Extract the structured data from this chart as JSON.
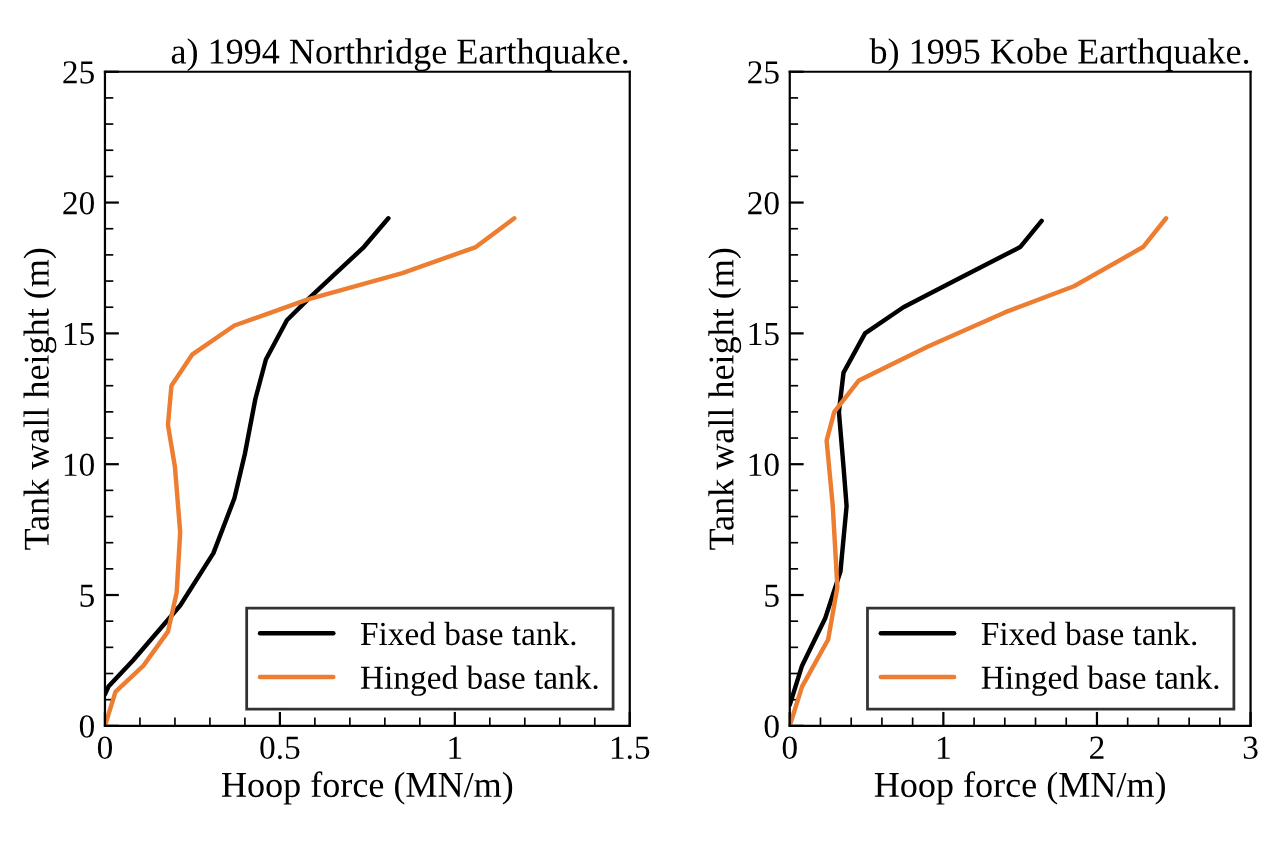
{
  "chart_data": [
    {
      "type": "line",
      "title": "a) 1994 Northridge Earthquake.",
      "xlabel": "Hoop force (MN/m)",
      "ylabel": "Tank wall height (m)",
      "xlim": [
        0,
        1.5
      ],
      "ylim": [
        0,
        25
      ],
      "xticks": [
        0,
        {
          "value": 0.1,
          "label": null
        },
        {
          "value": 0.2,
          "label": null
        },
        {
          "value": 0.3,
          "label": null
        },
        {
          "value": 0.4,
          "label": null
        },
        0.5,
        {
          "value": 0.6,
          "label": null
        },
        {
          "value": 0.7,
          "label": null
        },
        {
          "value": 0.8,
          "label": null
        },
        {
          "value": 0.9,
          "label": null
        },
        1,
        {
          "value": 1.1,
          "label": null
        },
        {
          "value": 1.2,
          "label": null
        },
        {
          "value": 1.3,
          "label": null
        },
        {
          "value": 1.4,
          "label": null
        },
        1.5
      ],
      "yticks": [
        0,
        {
          "value": 1,
          "label": null
        },
        {
          "value": 2,
          "label": null
        },
        {
          "value": 3,
          "label": null
        },
        {
          "value": 4,
          "label": null
        },
        5,
        {
          "value": 6,
          "label": null
        },
        {
          "value": 7,
          "label": null
        },
        {
          "value": 8,
          "label": null
        },
        {
          "value": 9,
          "label": null
        },
        10,
        {
          "value": 11,
          "label": null
        },
        {
          "value": 12,
          "label": null
        },
        {
          "value": 13,
          "label": null
        },
        {
          "value": 14,
          "label": null
        },
        15,
        {
          "value": 16,
          "label": null
        },
        {
          "value": 17,
          "label": null
        },
        {
          "value": 18,
          "label": null
        },
        {
          "value": 19,
          "label": null
        },
        20,
        {
          "value": 21,
          "label": null
        },
        {
          "value": 22,
          "label": null
        },
        {
          "value": 23,
          "label": null
        },
        {
          "value": 24,
          "label": null
        },
        25
      ],
      "grid": false,
      "legend": "bottom right",
      "marker": "none",
      "line_style": "solid",
      "series": [
        {
          "name": "Fixed base tank.",
          "color": "#000000",
          "x": [
            0,
            0.01,
            0.08,
            0.215,
            0.31,
            0.37,
            0.4,
            0.43,
            0.46,
            0.52,
            0.58,
            0.66,
            0.74,
            0.81
          ],
          "values": [
            1.2,
            1.5,
            2.5,
            4.6,
            6.6,
            8.7,
            10.4,
            12.5,
            14,
            15.5,
            16.3,
            17.3,
            18.3,
            19.4
          ]
        },
        {
          "name": "Hinged base tank.",
          "color": "#ed7d31",
          "x": [
            0,
            0.03,
            0.11,
            0.18,
            0.205,
            0.215,
            0.2,
            0.18,
            0.19,
            0.25,
            0.37,
            0.58,
            0.85,
            1.06,
            1.17
          ],
          "values": [
            0,
            1.3,
            2.3,
            3.6,
            5.1,
            7.4,
            9.9,
            11.5,
            13,
            14.2,
            15.3,
            16.3,
            17.3,
            18.3,
            19.4
          ]
        }
      ]
    },
    {
      "type": "line",
      "title": "b) 1995 Kobe Earthquake.",
      "xlabel": "Hoop force (MN/m)",
      "ylabel": "Tank wall height (m)",
      "xlim": [
        0,
        3
      ],
      "ylim": [
        0,
        25
      ],
      "xticks": [
        0,
        {
          "value": 0.2,
          "label": null
        },
        {
          "value": 0.4,
          "label": null
        },
        {
          "value": 0.6,
          "label": null
        },
        {
          "value": 0.8,
          "label": null
        },
        1,
        {
          "value": 1.2,
          "label": null
        },
        {
          "value": 1.4,
          "label": null
        },
        {
          "value": 1.6,
          "label": null
        },
        {
          "value": 1.8,
          "label": null
        },
        2,
        {
          "value": 2.2,
          "label": null
        },
        {
          "value": 2.4,
          "label": null
        },
        {
          "value": 2.6,
          "label": null
        },
        {
          "value": 2.8,
          "label": null
        },
        3
      ],
      "yticks": [
        0,
        {
          "value": 1,
          "label": null
        },
        {
          "value": 2,
          "label": null
        },
        {
          "value": 3,
          "label": null
        },
        {
          "value": 4,
          "label": null
        },
        5,
        {
          "value": 6,
          "label": null
        },
        {
          "value": 7,
          "label": null
        },
        {
          "value": 8,
          "label": null
        },
        {
          "value": 9,
          "label": null
        },
        10,
        {
          "value": 11,
          "label": null
        },
        {
          "value": 12,
          "label": null
        },
        {
          "value": 13,
          "label": null
        },
        {
          "value": 14,
          "label": null
        },
        15,
        {
          "value": 16,
          "label": null
        },
        {
          "value": 17,
          "label": null
        },
        {
          "value": 18,
          "label": null
        },
        {
          "value": 19,
          "label": null
        },
        20,
        {
          "value": 21,
          "label": null
        },
        {
          "value": 22,
          "label": null
        },
        {
          "value": 23,
          "label": null
        },
        {
          "value": 24,
          "label": null
        },
        25
      ],
      "grid": false,
      "legend": "bottom right",
      "marker": "none",
      "line_style": "solid",
      "series": [
        {
          "name": "Fixed base tank.",
          "color": "#000000",
          "x": [
            0,
            0.08,
            0.23,
            0.33,
            0.37,
            0.35,
            0.32,
            0.35,
            0.49,
            0.74,
            1.07,
            1.5,
            1.64
          ],
          "values": [
            0.8,
            2.3,
            4.1,
            5.9,
            8.4,
            9.9,
            12,
            13.5,
            15,
            16,
            17,
            18.3,
            19.3
          ]
        },
        {
          "name": "Hinged base tank.",
          "color": "#ed7d31",
          "x": [
            0,
            0.08,
            0.25,
            0.31,
            0.28,
            0.24,
            0.29,
            0.45,
            0.9,
            1.4,
            1.85,
            2.3,
            2.45
          ],
          "values": [
            0,
            1.5,
            3.3,
            5.3,
            8.4,
            10.9,
            12,
            13.2,
            14.5,
            15.8,
            16.8,
            18.3,
            19.4
          ]
        }
      ]
    }
  ]
}
